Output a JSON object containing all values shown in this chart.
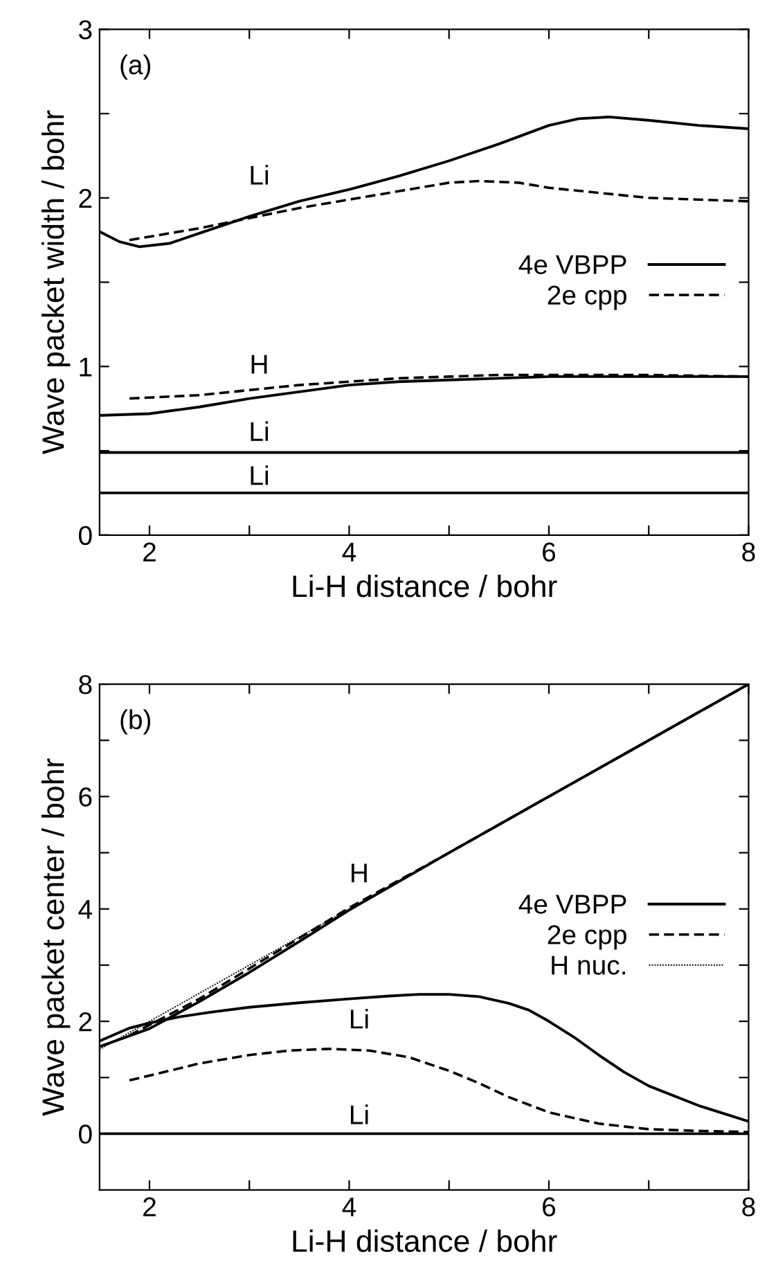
{
  "chart_data": [
    {
      "type": "line",
      "title": "(a)",
      "xlabel": "Li-H distance / bohr",
      "ylabel": "Wave packet width / bohr",
      "xlim": [
        1.5,
        8
      ],
      "xticks": [
        2,
        {
          "value": 3,
          "label": null
        },
        4,
        {
          "value": 5,
          "label": null
        },
        6,
        {
          "value": 7,
          "label": null
        },
        8
      ],
      "ylim": [
        0,
        3
      ],
      "yticks": [
        0,
        {
          "value": 0.5,
          "label": null
        },
        1,
        {
          "value": 1.5,
          "label": null
        },
        2,
        {
          "value": 2.5,
          "label": null
        },
        3
      ],
      "grid": false,
      "legend": "right",
      "marker": "none",
      "series": [
        {
          "name": "4e VBPP",
          "color": "#000000",
          "line_style": "solid",
          "x": [
            1.5,
            1.7,
            1.9,
            2.2,
            2.5,
            3,
            3.5,
            4,
            4.5,
            5,
            5.5,
            6,
            6.3,
            6.6,
            7,
            7.5,
            8
          ],
          "values": [
            1.8,
            1.74,
            1.71,
            1.73,
            1.79,
            1.89,
            1.98,
            2.05,
            2.13,
            2.22,
            2.32,
            2.43,
            2.47,
            2.48,
            2.46,
            2.43,
            2.41
          ]
        },
        {
          "name": "2e cpp",
          "color": "#000000",
          "line_style": "dashed",
          "x": [
            1.8,
            2.5,
            3,
            3.5,
            4,
            4.5,
            5,
            5.3,
            5.7,
            6,
            6.5,
            7,
            7.5,
            8
          ],
          "values": [
            1.75,
            1.82,
            1.88,
            1.94,
            1.99,
            2.04,
            2.09,
            2.1,
            2.09,
            2.06,
            2.03,
            2.0,
            1.99,
            1.98
          ]
        },
        {
          "color": "#000000",
          "line_style": "solid",
          "x": [
            1.5,
            2,
            2.5,
            3,
            3.5,
            4,
            4.5,
            5,
            5.5,
            6,
            7,
            8
          ],
          "values": [
            0.71,
            0.72,
            0.76,
            0.81,
            0.85,
            0.89,
            0.91,
            0.92,
            0.93,
            0.94,
            0.94,
            0.94
          ]
        },
        {
          "color": "#000000",
          "line_style": "dashed",
          "x": [
            1.8,
            2.5,
            3,
            3.5,
            4,
            4.5,
            5,
            5.5,
            6,
            7,
            8
          ],
          "values": [
            0.81,
            0.83,
            0.86,
            0.89,
            0.91,
            0.93,
            0.94,
            0.95,
            0.95,
            0.95,
            0.94
          ]
        },
        {
          "color": "#000000",
          "line_style": "solid",
          "x": [
            1.5,
            8
          ],
          "values": [
            0.49,
            0.49
          ]
        },
        {
          "color": "#000000",
          "line_style": "solid",
          "x": [
            1.5,
            8
          ],
          "values": [
            0.25,
            0.25
          ]
        }
      ],
      "annotations": [
        "Li",
        "H",
        "Li",
        "Li"
      ]
    },
    {
      "type": "line",
      "title": "(b)",
      "xlabel": "Li-H distance / bohr",
      "ylabel": "Wave packet center / bohr",
      "xlim": [
        1.5,
        8
      ],
      "xticks": [
        2,
        {
          "value": 3,
          "label": null
        },
        4,
        {
          "value": 5,
          "label": null
        },
        6,
        {
          "value": 7,
          "label": null
        },
        8
      ],
      "ylim": [
        -1,
        8
      ],
      "yticks": [
        0,
        {
          "value": 1,
          "label": null
        },
        2,
        {
          "value": 3,
          "label": null
        },
        4,
        {
          "value": 5,
          "label": null
        },
        6,
        {
          "value": 7,
          "label": null
        },
        8
      ],
      "grid": false,
      "legend": "right",
      "marker": "none",
      "series": [
        {
          "name": "4e VBPP",
          "color": "#000000",
          "line_style": "solid",
          "x": [
            1.5,
            2,
            2.5,
            3,
            3.5,
            4,
            5,
            6,
            7,
            8
          ],
          "values": [
            1.55,
            1.87,
            2.35,
            2.87,
            3.42,
            3.98,
            5.0,
            6.0,
            7.0,
            8.0
          ]
        },
        {
          "name": "2e cpp",
          "color": "#000000",
          "line_style": "dashed",
          "x": [
            1.8,
            2.5,
            3,
            3.5,
            4,
            5,
            6,
            7,
            8
          ],
          "values": [
            1.75,
            2.4,
            2.94,
            3.48,
            4.02,
            5.0,
            6.0,
            7.0,
            8.0
          ]
        },
        {
          "name": "H nuc.",
          "color": "#000000",
          "line_style": "dotted",
          "x": [
            1.5,
            2,
            3,
            4,
            5,
            6,
            7,
            8
          ],
          "values": [
            1.5,
            2.0,
            3.0,
            4.0,
            5.0,
            6.0,
            7.0,
            8.0
          ]
        },
        {
          "color": "#000000",
          "line_style": "solid",
          "x": [
            1.5,
            1.8,
            2,
            2.3,
            2.6,
            3,
            3.5,
            4,
            4.4,
            4.7,
            5,
            5.3,
            5.6,
            5.8,
            6,
            6.25,
            6.5,
            6.75,
            7,
            7.5,
            8
          ],
          "values": [
            1.65,
            1.88,
            1.97,
            2.08,
            2.16,
            2.25,
            2.33,
            2.4,
            2.45,
            2.48,
            2.48,
            2.44,
            2.32,
            2.2,
            2.0,
            1.72,
            1.4,
            1.1,
            0.85,
            0.5,
            0.22
          ]
        },
        {
          "color": "#000000",
          "line_style": "dashed",
          "x": [
            1.8,
            2.2,
            2.5,
            3,
            3.4,
            3.8,
            4.2,
            4.6,
            5,
            5.3,
            5.6,
            6,
            6.5,
            7,
            7.5,
            8
          ],
          "values": [
            0.95,
            1.12,
            1.25,
            1.4,
            1.48,
            1.51,
            1.48,
            1.36,
            1.12,
            0.9,
            0.65,
            0.38,
            0.18,
            0.08,
            0.05,
            0.03
          ]
        },
        {
          "color": "#000000",
          "line_style": "solid",
          "x": [
            1.5,
            8
          ],
          "values": [
            0.0,
            0.0
          ]
        }
      ],
      "annotations": [
        "H",
        "Li",
        "Li"
      ]
    }
  ]
}
